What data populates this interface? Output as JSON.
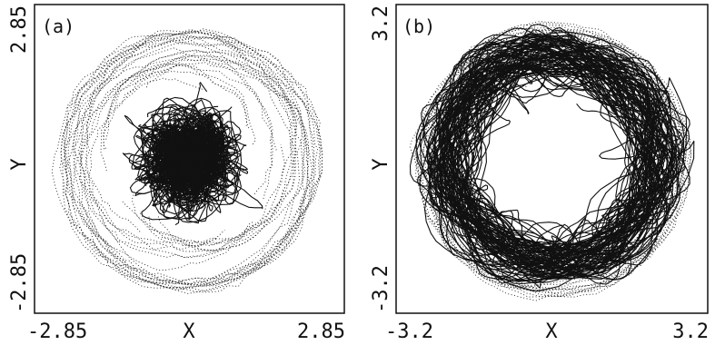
{
  "chart_data": [
    {
      "type": "line",
      "panel_label": "(a)",
      "xlabel": "X",
      "ylabel": "Y",
      "xlim": [
        -2.85,
        2.85
      ],
      "ylim": [
        -2.85,
        2.85
      ],
      "x_tick_labels": [
        "-2.85",
        "2.85"
      ],
      "y_tick_labels": [
        "-2.85",
        "2.85"
      ],
      "grid": false,
      "description_series": {
        "kind": "chaotic trajectory",
        "center": [
          0.0,
          0.0
        ],
        "dense_core_radius": 1.5,
        "max_radius": 2.6,
        "line_style_outer": "dotted",
        "line_style_core": "solid"
      }
    },
    {
      "type": "line",
      "panel_label": "(b)",
      "xlabel": "X",
      "ylabel": "Y",
      "xlim": [
        -3.2,
        3.2
      ],
      "ylim": [
        -3.2,
        3.2
      ],
      "x_tick_labels": [
        "-3.2",
        "3.2"
      ],
      "y_tick_labels": [
        "-3.2",
        "3.2"
      ],
      "grid": false,
      "description_series": {
        "kind": "chaotic trajectory",
        "center": [
          0.0,
          0.0
        ],
        "ring_radius": 1.9,
        "max_radius": 3.0,
        "line_style_outer": "dotted",
        "line_style_core": "solid"
      }
    }
  ]
}
